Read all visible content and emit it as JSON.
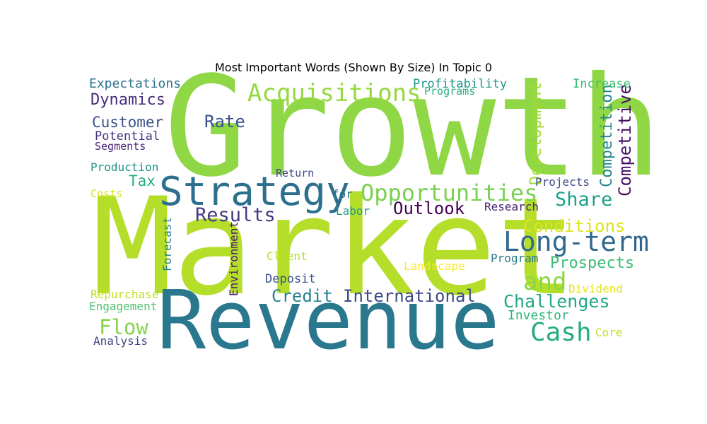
{
  "chart_data": {
    "type": "wordcloud",
    "title": "Most Important Words (Shown By Size) In Topic 0",
    "background": "#ffffff",
    "colormap": "viridis",
    "words": [
      {
        "text": "Growth",
        "color": "#8fd744"
      },
      {
        "text": "Market",
        "color": "#b5de2b"
      },
      {
        "text": "Revenue",
        "color": "#2a788e"
      },
      {
        "text": "Strategy",
        "color": "#2d708e"
      },
      {
        "text": "Opportunities",
        "color": "#7ad151"
      },
      {
        "text": "Acquisitions",
        "color": "#95d840"
      },
      {
        "text": "Long-term",
        "color": "#31688e"
      },
      {
        "text": "Cash",
        "color": "#25ab82"
      },
      {
        "text": "Results",
        "color": "#443983"
      },
      {
        "text": "Outlook",
        "color": "#440154"
      },
      {
        "text": "Share",
        "color": "#1fa188"
      },
      {
        "text": "and",
        "color": "#8bd646"
      },
      {
        "text": "Challenges",
        "color": "#22a884"
      },
      {
        "text": "International",
        "color": "#3e4a89"
      },
      {
        "text": "Credit",
        "color": "#26828e"
      },
      {
        "text": "Flow",
        "color": "#84d44b"
      },
      {
        "text": "Conditions",
        "color": "#dde318"
      },
      {
        "text": "Prospects",
        "color": "#3dbc74"
      },
      {
        "text": "Competitive",
        "color": "#471063"
      },
      {
        "text": "Competition",
        "color": "#25858e"
      },
      {
        "text": "Development",
        "color": "#a2da37"
      },
      {
        "text": "Dynamics",
        "color": "#472d7b"
      },
      {
        "text": "Customer",
        "color": "#3b528b"
      },
      {
        "text": "Rate",
        "color": "#3b528b"
      },
      {
        "text": "Tax",
        "color": "#28ae80"
      },
      {
        "text": "Expectations",
        "color": "#2c728e"
      },
      {
        "text": "Profitability",
        "color": "#1f958b"
      },
      {
        "text": "Programs",
        "color": "#29af7f"
      },
      {
        "text": "Increase",
        "color": "#3dbc74"
      },
      {
        "text": "Potential",
        "color": "#46327e"
      },
      {
        "text": "Segments",
        "color": "#482576"
      },
      {
        "text": "Production",
        "color": "#21918c"
      },
      {
        "text": "Return",
        "color": "#414487"
      },
      {
        "text": "Projects",
        "color": "#3e4989"
      },
      {
        "text": "Costs",
        "color": "#d8e219"
      },
      {
        "text": "for",
        "color": "#2c728e"
      },
      {
        "text": "Labor",
        "color": "#1f998a"
      },
      {
        "text": "Research",
        "color": "#482475"
      },
      {
        "text": "Forecast",
        "color": "#27808e"
      },
      {
        "text": "Environment",
        "color": "#481a6c"
      },
      {
        "text": "Client",
        "color": "#b5de2b"
      },
      {
        "text": "Landscape",
        "color": "#fde725"
      },
      {
        "text": "Program",
        "color": "#2a788e"
      },
      {
        "text": "Deposit",
        "color": "#3b528b"
      },
      {
        "text": "Repurchase",
        "color": "#c0df25"
      },
      {
        "text": "Engagement",
        "color": "#4ac16d"
      },
      {
        "text": "Dividend",
        "color": "#e5e419"
      },
      {
        "text": "Investor",
        "color": "#2fb47c"
      },
      {
        "text": "Core",
        "color": "#c8e020"
      },
      {
        "text": "Analysis",
        "color": "#404688"
      }
    ]
  }
}
